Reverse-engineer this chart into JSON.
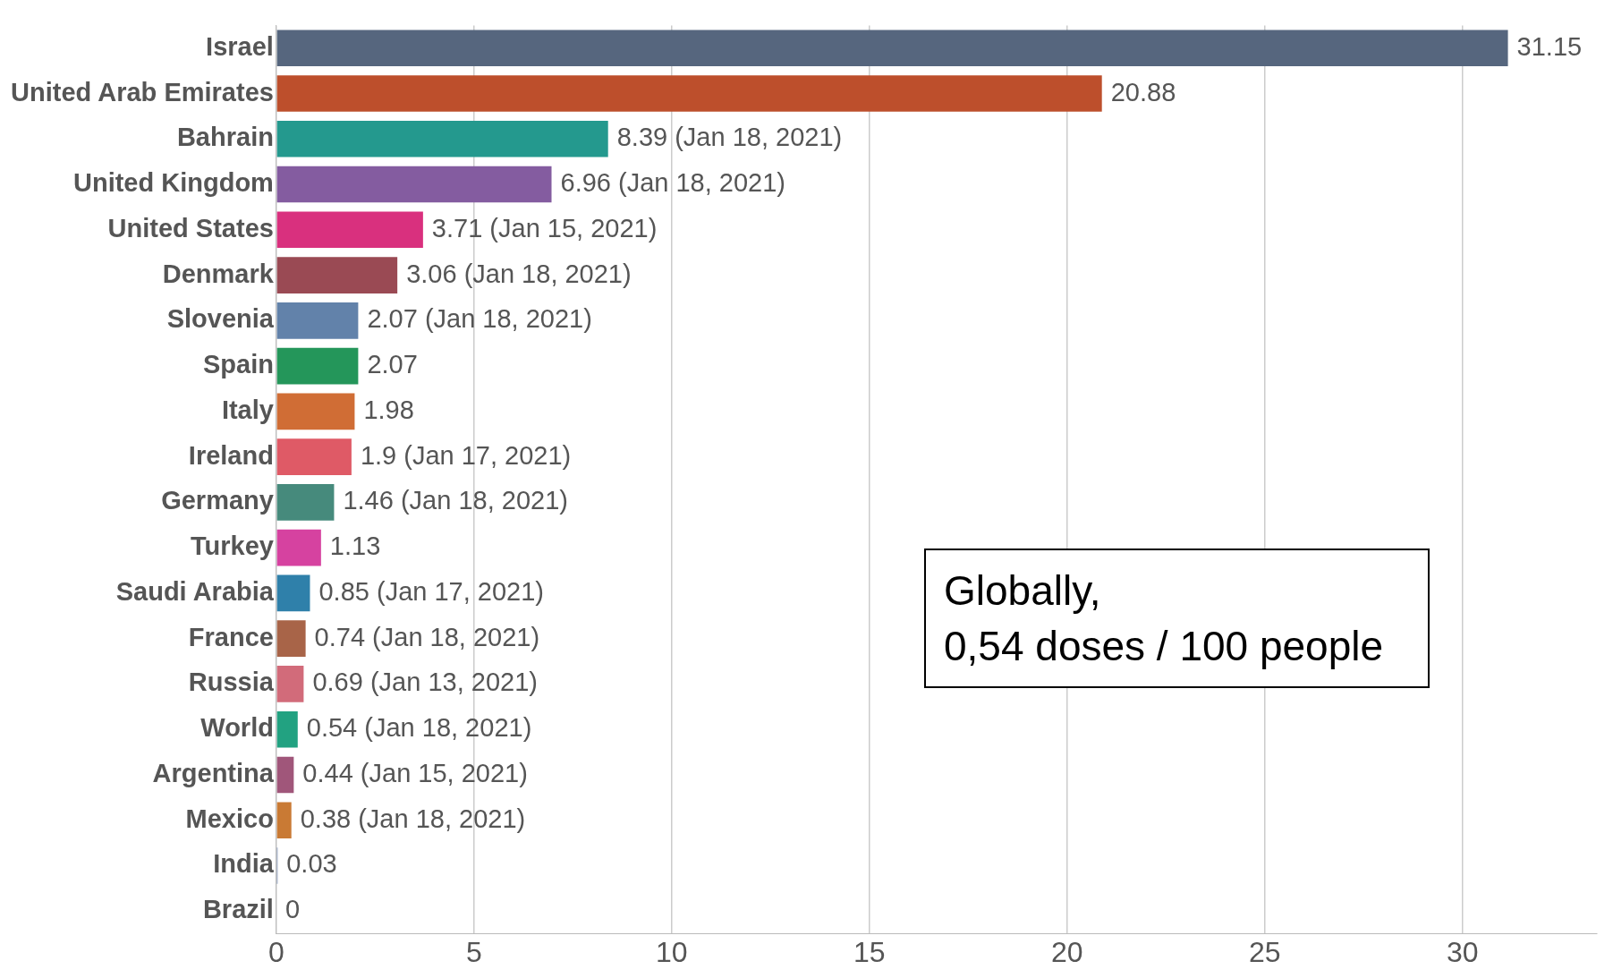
{
  "chart_data": {
    "type": "bar",
    "orientation": "horizontal",
    "categories": [
      "Israel",
      "United Arab Emirates",
      "Bahrain",
      "United Kingdom",
      "United States",
      "Denmark",
      "Slovenia",
      "Spain",
      "Italy",
      "Ireland",
      "Germany",
      "Turkey",
      "Saudi Arabia",
      "France",
      "Russia",
      "World",
      "Argentina",
      "Mexico",
      "India",
      "Brazil"
    ],
    "values": [
      31.15,
      20.88,
      8.39,
      6.96,
      3.71,
      3.06,
      2.07,
      2.07,
      1.98,
      1.9,
      1.46,
      1.13,
      0.85,
      0.74,
      0.69,
      0.54,
      0.44,
      0.38,
      0.03,
      0
    ],
    "value_labels": [
      "31.15",
      "20.88",
      "8.39 (Jan 18, 2021)",
      "6.96 (Jan 18, 2021)",
      "3.71 (Jan 15, 2021)",
      "3.06 (Jan 18, 2021)",
      "2.07 (Jan 18, 2021)",
      "2.07",
      "1.98",
      "1.9 (Jan 17, 2021)",
      "1.46 (Jan 18, 2021)",
      "1.13",
      "0.85 (Jan 17, 2021)",
      "0.74 (Jan 18, 2021)",
      "0.69 (Jan 13, 2021)",
      "0.54 (Jan 18, 2021)",
      "0.44 (Jan 15, 2021)",
      "0.38 (Jan 18, 2021)",
      "0.03",
      "0"
    ],
    "colors": [
      "#56667e",
      "#bd4f2c",
      "#24998e",
      "#845ca0",
      "#d9307e",
      "#9a4a54",
      "#6282aa",
      "#24965a",
      "#d06d35",
      "#df5a66",
      "#468a7c",
      "#d642a0",
      "#2f80aa",
      "#a86448",
      "#d26b7a",
      "#22a281",
      "#a0567a",
      "#c97a34",
      "#4f6a9a",
      "#888888"
    ],
    "xlim": [
      0,
      33.4
    ],
    "xticks": [
      0,
      5,
      10,
      15,
      20,
      25,
      30
    ],
    "grid": "x",
    "legend": false,
    "annotations": [
      "Globally,\n0,54 doses / 100 people"
    ]
  }
}
